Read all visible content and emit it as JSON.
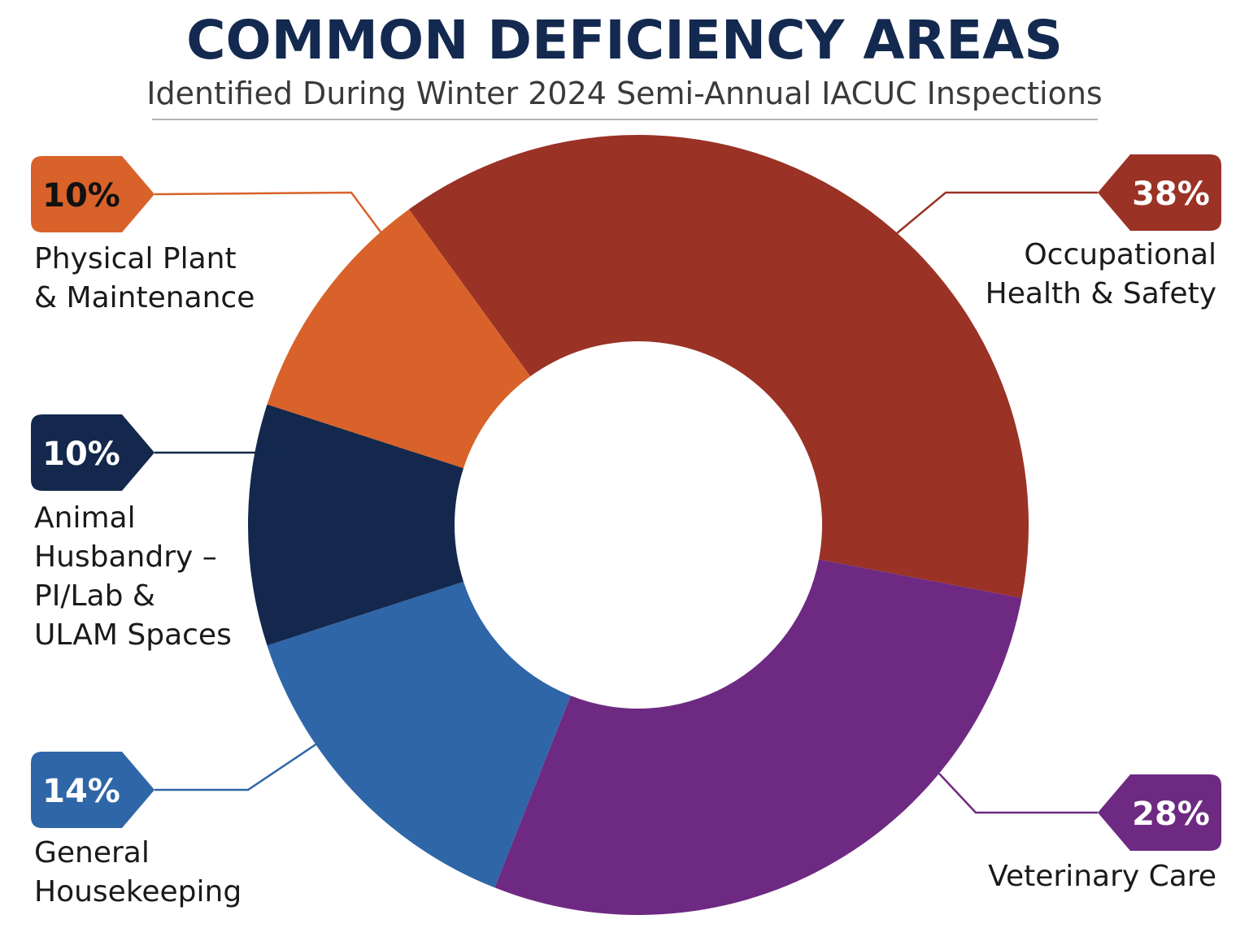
{
  "chart_data": {
    "type": "pie",
    "variant": "donut",
    "title": "COMMON DEFICIENCY AREAS",
    "subtitle": "Identified During Winter 2024 Semi-Annual IACUC Inspections",
    "unit": "%",
    "slices": [
      {
        "label_lines": [
          "Occupational",
          "Health & Safety"
        ],
        "value": 38,
        "value_label": "38%",
        "color": "#9a3226",
        "text_color": "#ffffff"
      },
      {
        "label_lines": [
          "Veterinary Care"
        ],
        "value": 28,
        "value_label": "28%",
        "color": "#6e2a82",
        "text_color": "#ffffff"
      },
      {
        "label_lines": [
          "General",
          "Housekeeping"
        ],
        "value": 14,
        "value_label": "14%",
        "color": "#2f66a8",
        "text_color": "#ffffff"
      },
      {
        "label_lines": [
          "Animal",
          "Husbandry –",
          "PI/Lab &",
          "ULAM Spaces"
        ],
        "value": 10,
        "value_label": "10%",
        "color": "#13284c",
        "text_color": "#ffffff"
      },
      {
        "label_lines": [
          "Physical Plant",
          "& Maintenance"
        ],
        "value": 10,
        "value_label": "10%",
        "color": "#d8622a",
        "text_color": "#111111"
      }
    ],
    "legend": "callouts"
  }
}
